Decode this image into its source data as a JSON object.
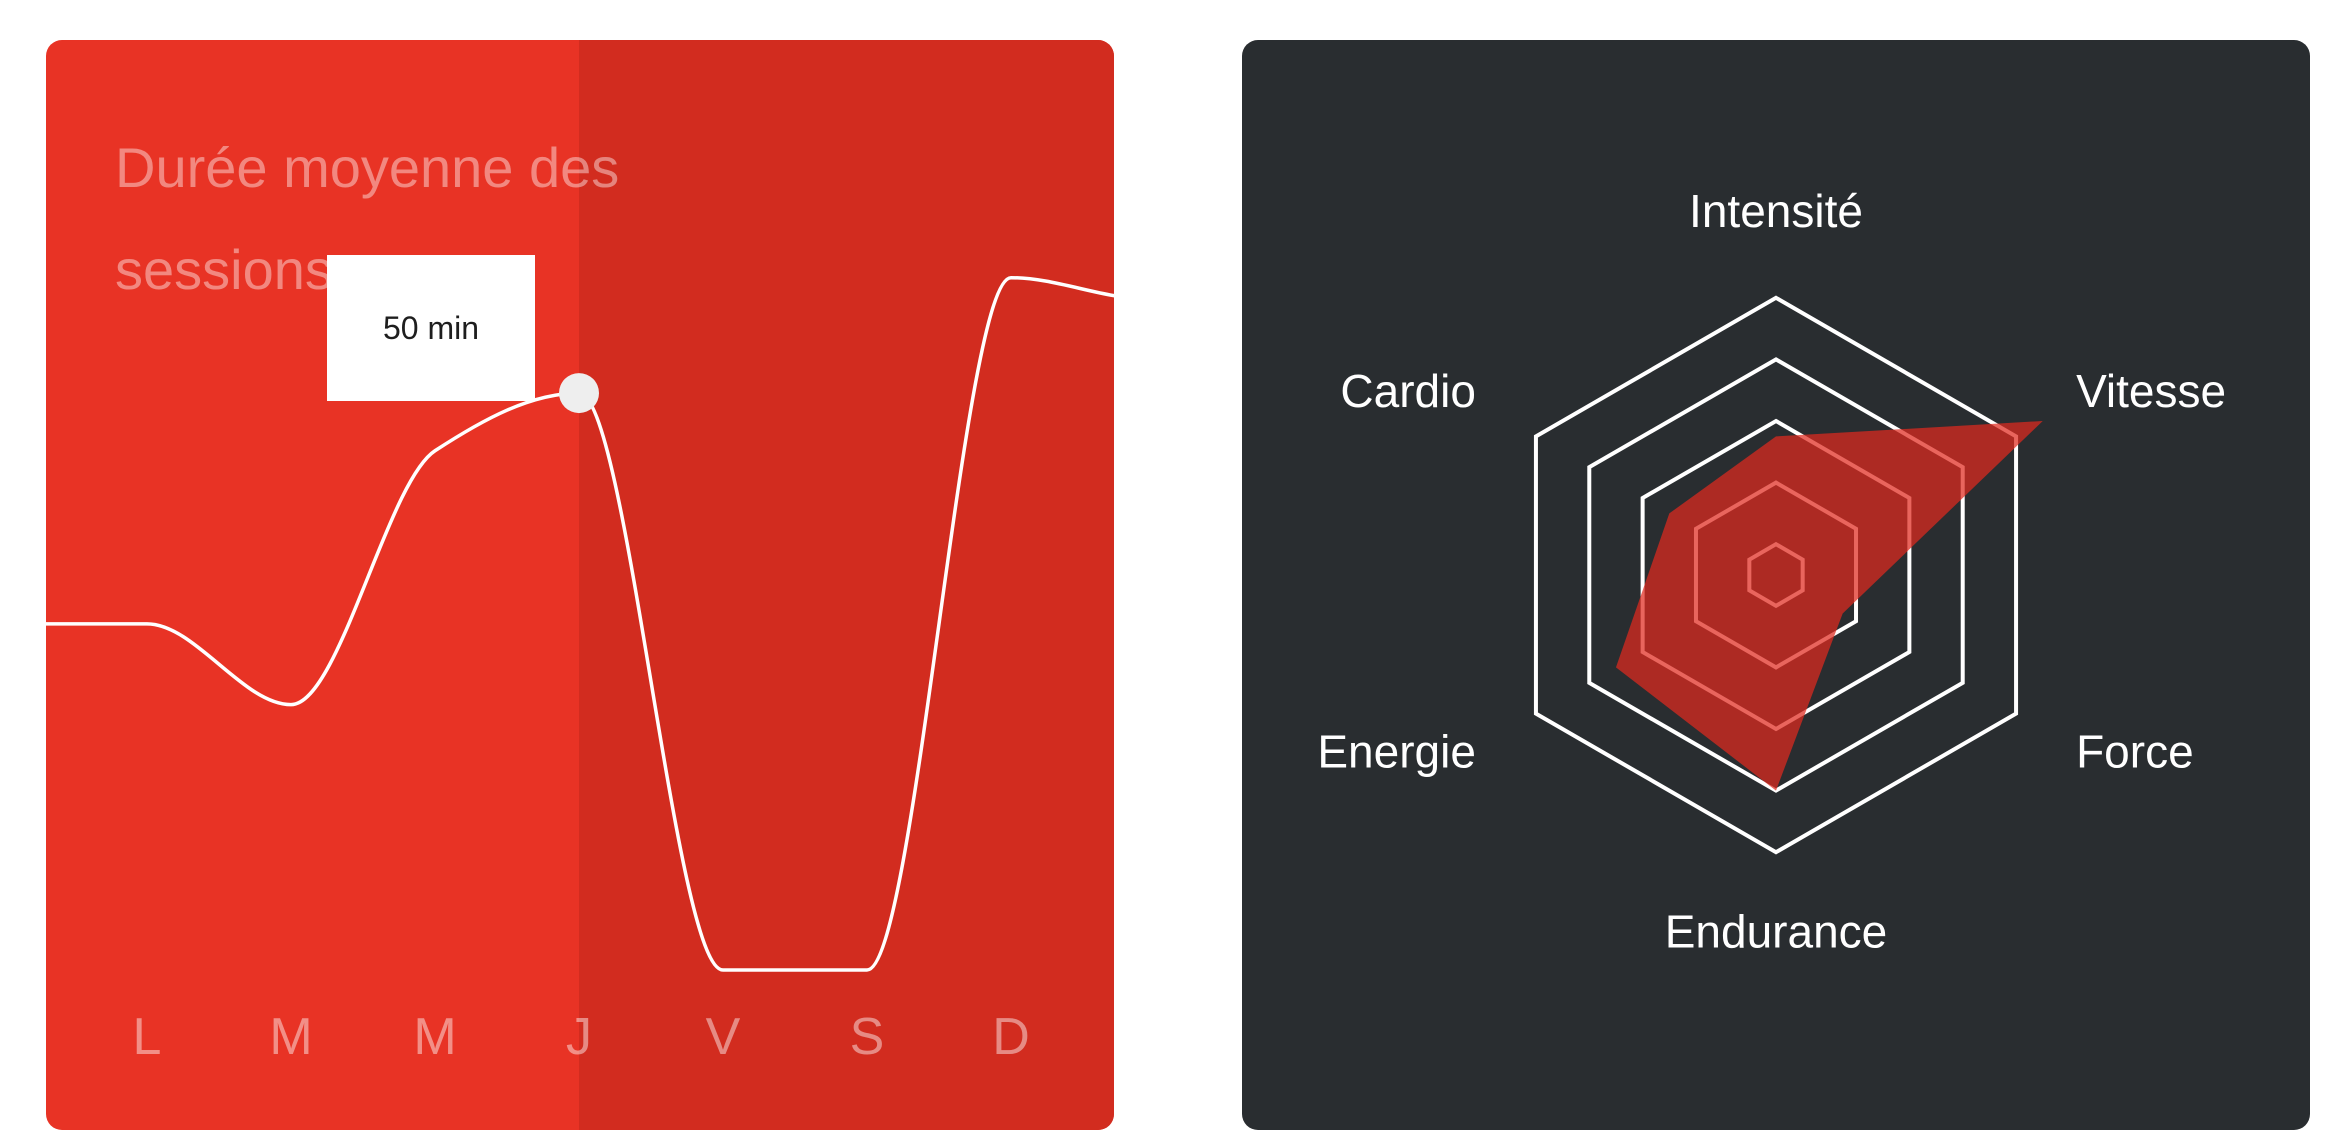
{
  "colors": {
    "sessions_bg": "#e83325",
    "sessions_highlight": "#d22c1f",
    "radar_bg": "#292d30",
    "radar_fill": "#e0291f",
    "grid": "#ffffff",
    "line": "#ffffff"
  },
  "chart_data": [
    {
      "type": "line",
      "title": "Durée moyenne des sessions",
      "categories": [
        "L",
        "M",
        "M",
        "J",
        "V",
        "S",
        "D"
      ],
      "values": [
        30,
        23,
        45,
        50,
        0,
        0,
        60
      ],
      "unit": "min",
      "ylim": [
        0,
        65
      ],
      "highlight_index": 3,
      "tooltip": "50 min",
      "grid": false,
      "legend": "none"
    },
    {
      "type": "radar",
      "axes": [
        "Intensité",
        "Vitesse",
        "Force",
        "Endurance",
        "Energie",
        "Cardio"
      ],
      "values": [
        90,
        200,
        50,
        140,
        120,
        80
      ],
      "rmax": 200,
      "rings": [
        20,
        60,
        100,
        140,
        180
      ],
      "grid": true,
      "legend": "none"
    }
  ]
}
